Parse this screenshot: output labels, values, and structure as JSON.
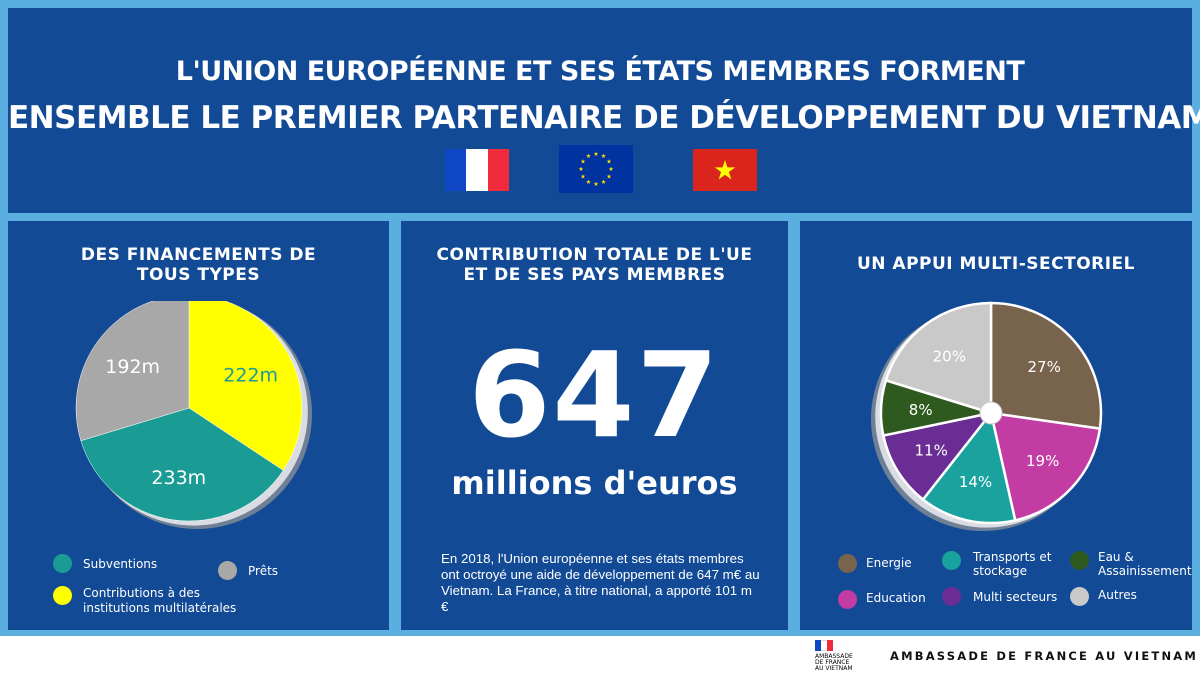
{
  "header": {
    "title_line1": "L'UNION EUROPÉENNE ET SES ÉTATS  MEMBRES FORMENT",
    "title_line2": "ENSEMBLE LE PREMIER PARTENAIRE DE DÉVELOPPEMENT DU VIETNAM",
    "flags": [
      "france-flag-icon",
      "eu-flag-icon",
      "vietnam-flag-icon"
    ]
  },
  "financing": {
    "title_line1": "DES FINANCEMENTS DE",
    "title_line2": "TOUS TYPES",
    "legend": {
      "subventions": "Subventions",
      "prets": "Prêts",
      "contributions_line1": "Contributions à des",
      "contributions_line2": "institutions multilatérales"
    }
  },
  "total": {
    "title_line1": "CONTRIBUTION TOTALE DE L'UE",
    "title_line2": "ET DE SES PAYS MEMBRES",
    "value": "647",
    "unit": "millions d'euros",
    "description": "En 2018, l'Union européenne et ses états membres ont octroyé une aide de développement de 647 m€ au Vietnam. La France, à titre national, a apporté 101 m €"
  },
  "sectors": {
    "title": "UN APPUI MULTI-SECTORIEL",
    "legend": {
      "energie": "Energie",
      "transports_line1": "Transports et",
      "transports_line2": "stockage",
      "eau_line1": "Eau &",
      "eau_line2": "Assainissement",
      "education": "Education",
      "multi": "Multi secteurs",
      "autres": "Autres"
    }
  },
  "footer": {
    "logo_line1": "AMBASSADE",
    "logo_line2": "DE FRANCE",
    "logo_line3": "AU VIETNAM",
    "text": "AMBASSADE DE FRANCE AU VIETNAM"
  },
  "colors": {
    "panel_bg": "#124a96",
    "page_bg": "#5aaee0",
    "subventions": "#1a9c95",
    "prets": "#a8a8a8",
    "contributions": "#ffff00",
    "energie": "#78644c",
    "transports": "#1aa39e",
    "eau": "#2f5a1f",
    "education": "#c23ca4",
    "multi": "#6a2d94",
    "autres": "#c9c9c9"
  },
  "chart_data": [
    {
      "type": "pie",
      "categories": [
        "Contributions à des institutions multilatérales",
        "Subventions",
        "Prêts"
      ],
      "values": [
        222,
        233,
        192
      ],
      "labels": [
        "222m",
        "233m",
        "192m"
      ],
      "colors": [
        "#ffff00",
        "#1a9c95",
        "#a8a8a8"
      ],
      "title": "DES FINANCEMENTS DE TOUS TYPES",
      "legend": "bottom"
    },
    {
      "type": "pie",
      "categories": [
        "Energie",
        "Education",
        "Transports et stockage",
        "Multi secteurs",
        "Eau & Assainissement",
        "Autres"
      ],
      "values": [
        27,
        19,
        14,
        11,
        8,
        20
      ],
      "labels": [
        "27%",
        "19%",
        "14%",
        "11%",
        "8%",
        "20%"
      ],
      "colors": [
        "#78644c",
        "#c23ca4",
        "#1aa39e",
        "#6a2d94",
        "#2f5a1f",
        "#c9c9c9"
      ],
      "title": "UN APPUI MULTI-SECTORIEL",
      "legend": "bottom"
    }
  ]
}
